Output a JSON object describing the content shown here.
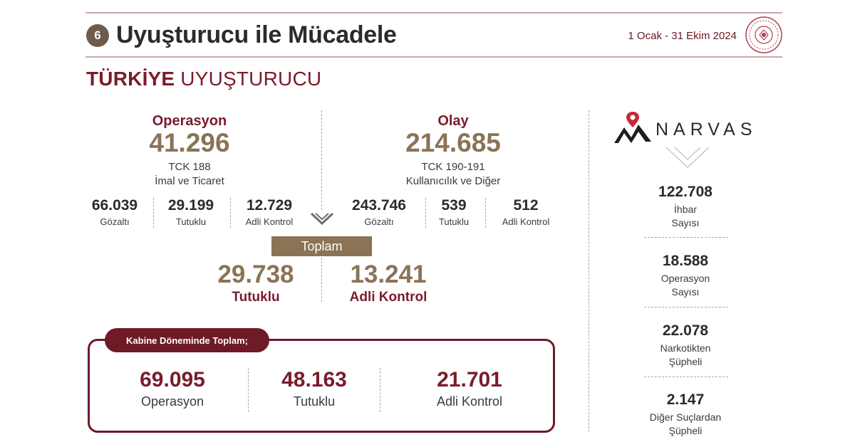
{
  "header": {
    "number": "6",
    "title": "Uyuşturucu ile Mücadele",
    "date_range": "1 Ocak - 31 Ekim 2024"
  },
  "subtitle": {
    "bold": "TÜRKİYE",
    "rest": "UYUŞTURUCU"
  },
  "operasyon": {
    "label": "Operasyon",
    "value": "41.296",
    "code": "TCK 188",
    "desc": "İmal ve Ticaret",
    "stats": [
      {
        "value": "66.039",
        "label": "Gözaltı"
      },
      {
        "value": "29.199",
        "label": "Tutuklu"
      },
      {
        "value": "12.729",
        "label": "Adli Kontrol"
      }
    ]
  },
  "olay": {
    "label": "Olay",
    "value": "214.685",
    "code": "TCK 190-191",
    "desc": "Kullanıcılık ve Diğer",
    "stats": [
      {
        "value": "243.746",
        "label": "Gözaltı"
      },
      {
        "value": "539",
        "label": "Tutuklu"
      },
      {
        "value": "512",
        "label": "Adli Kontrol"
      }
    ]
  },
  "toplam": {
    "label": "Toplam",
    "left": {
      "value": "29.738",
      "label": "Tutuklu"
    },
    "right": {
      "value": "13.241",
      "label": "Adli Kontrol"
    }
  },
  "cabinet": {
    "label": "Kabine Döneminde Toplam;",
    "items": [
      {
        "value": "69.095",
        "label": "Operasyon"
      },
      {
        "value": "48.163",
        "label": "Tutuklu"
      },
      {
        "value": "21.701",
        "label": "Adli Kontrol"
      }
    ]
  },
  "narvas": {
    "brand": "NARVAS",
    "stats": [
      {
        "value": "122.708",
        "line1": "İhbar",
        "line2": "Sayısı"
      },
      {
        "value": "18.588",
        "line1": "Operasyon",
        "line2": "Sayısı"
      },
      {
        "value": "22.078",
        "line1": "Narkotikten",
        "line2": "Şüpheli"
      },
      {
        "value": "2.147",
        "line1": "Diğer Suçlardan",
        "line2": "Şüpheli"
      }
    ]
  },
  "colors": {
    "maroon": "#7a1c2b",
    "gold": "#8b7356",
    "dark": "#2b2b2b"
  },
  "icons": [
    "ministry-seal-icon",
    "narvas-logo-icon",
    "chevron-down-icon",
    "location-pin-icon"
  ]
}
